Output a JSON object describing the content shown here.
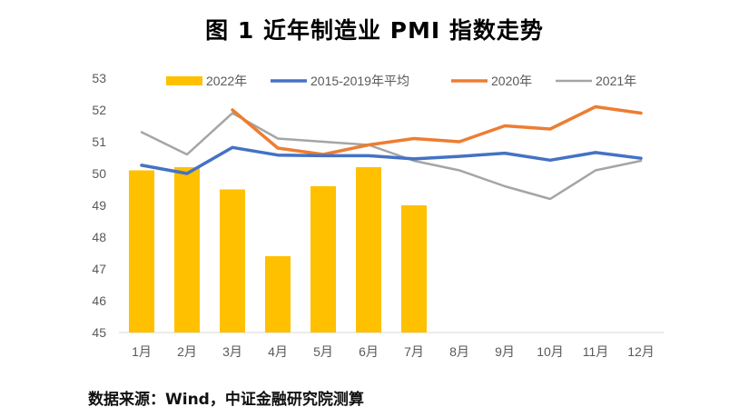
{
  "chart_data": {
    "type": "bar+line",
    "title": "图 1  近年制造业 PMI 指数走势",
    "categories": [
      "1月",
      "2月",
      "3月",
      "4月",
      "5月",
      "6月",
      "7月",
      "8月",
      "9月",
      "10月",
      "11月",
      "12月"
    ],
    "ylim": [
      45,
      53
    ],
    "yticks": [
      45,
      46,
      47,
      48,
      49,
      50,
      51,
      52,
      53
    ],
    "grid": false,
    "legend_position": "top",
    "series": [
      {
        "name": "2022年",
        "kind": "bar",
        "color": "#FFC000",
        "values": [
          50.1,
          50.2,
          49.5,
          47.4,
          49.6,
          50.2,
          49.0,
          null,
          null,
          null,
          null,
          null
        ]
      },
      {
        "name": "2015-2019年平均",
        "kind": "line",
        "color": "#4472C4",
        "values": [
          50.26,
          50.0,
          50.82,
          50.58,
          50.56,
          50.56,
          50.46,
          50.54,
          50.64,
          50.42,
          50.66,
          50.48
        ]
      },
      {
        "name": "2020年",
        "kind": "line",
        "color": "#ED7D31",
        "values": [
          null,
          null,
          52.0,
          50.8,
          50.6,
          50.9,
          51.1,
          51.0,
          51.5,
          51.4,
          52.1,
          51.9
        ]
      },
      {
        "name": "2021年",
        "kind": "line",
        "color": "#A5A5A5",
        "values": [
          51.3,
          50.6,
          51.9,
          51.1,
          51.0,
          50.9,
          50.4,
          50.1,
          49.6,
          49.2,
          50.1,
          50.4
        ]
      }
    ]
  },
  "source_note": "数据来源：Wind，中证金融研究院测算"
}
